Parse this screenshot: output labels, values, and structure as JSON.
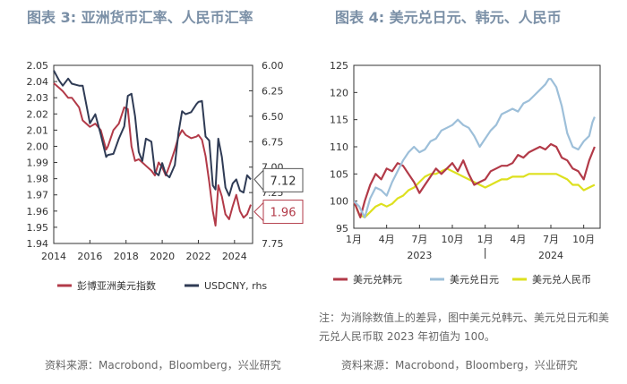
{
  "left_title": "图表 3: 亚洲货币汇率、人民币汇率",
  "right_title": "图表 4: 美元兑日元、韩元、人民币",
  "note": "注：为消除数值上的差异，图中美元兑韩元、美元兑日元和美元兑人民币取 2023 年初值为 100。",
  "left_source": "资料来源：Macrobond，Bloomberg，兴业研究",
  "right_source": "资料来源：Macrobond，Bloomberg，兴业研究",
  "colors": {
    "red": "#b23a48",
    "navy": "#2f3b55",
    "lightblue": "#9dbfd9",
    "yellow": "#dde01e",
    "title": "#7a8fa6"
  },
  "chart_data": [
    {
      "type": "line",
      "title": "图表 3: 亚洲货币汇率、人民币汇率",
      "x_range": [
        2014,
        2025
      ],
      "x_ticks": [
        "2014",
        "2016",
        "2018",
        "2020",
        "2022",
        "2024"
      ],
      "y_left_range": [
        1.94,
        2.05
      ],
      "y_left_ticks": [
        "2.05",
        "2.04",
        "2.03",
        "2.02",
        "2.01",
        "2.00",
        "1.99",
        "1.98",
        "1.97",
        "1.96",
        "1.95",
        "1.94"
      ],
      "y_right_range": [
        6.0,
        7.75
      ],
      "y_right_inverted": true,
      "y_right_ticks": [
        "6.00",
        "6.25",
        "6.50",
        "6.75",
        "7.00",
        "7.25",
        "7.50",
        "7.75"
      ],
      "series": [
        {
          "name": "彭博亚洲美元指数",
          "axis": "left",
          "x": [
            2014.0,
            2014.3,
            2014.5,
            2014.8,
            2015.0,
            2015.4,
            2015.6,
            2016.0,
            2016.3,
            2016.6,
            2016.9,
            2017.0,
            2017.3,
            2017.6,
            2017.9,
            2018.1,
            2018.3,
            2018.5,
            2018.7,
            2018.9,
            2019.1,
            2019.4,
            2019.6,
            2019.8,
            2020.0,
            2020.2,
            2020.4,
            2020.7,
            2020.9,
            2021.1,
            2021.3,
            2021.6,
            2021.9,
            2022.0,
            2022.2,
            2022.4,
            2022.6,
            2022.8,
            2022.95,
            2023.1,
            2023.3,
            2023.5,
            2023.7,
            2023.9,
            2024.1,
            2024.3,
            2024.5,
            2024.7,
            2024.9
          ],
          "values": [
            2.039,
            2.036,
            2.034,
            2.03,
            2.03,
            2.024,
            2.016,
            2.012,
            2.014,
            2.01,
            1.998,
            2.0,
            2.01,
            2.014,
            2.024,
            2.023,
            2.0,
            1.991,
            1.992,
            1.99,
            1.988,
            1.985,
            1.982,
            1.99,
            1.987,
            1.982,
            1.988,
            1.998,
            2.006,
            2.01,
            2.007,
            2.005,
            2.006,
            2.007,
            2.004,
            1.994,
            1.978,
            1.96,
            1.951,
            1.976,
            1.969,
            1.958,
            1.955,
            1.963,
            1.97,
            1.96,
            1.956,
            1.958,
            1.964
          ]
        },
        {
          "name": "USDCNY, rhs",
          "axis": "right",
          "x": [
            2014.0,
            2014.3,
            2014.5,
            2014.8,
            2015.0,
            2015.4,
            2015.6,
            2016.0,
            2016.3,
            2016.6,
            2016.9,
            2017.0,
            2017.3,
            2017.6,
            2017.9,
            2018.1,
            2018.3,
            2018.5,
            2018.7,
            2018.9,
            2019.1,
            2019.4,
            2019.6,
            2019.8,
            2020.0,
            2020.2,
            2020.4,
            2020.7,
            2020.9,
            2021.1,
            2021.3,
            2021.6,
            2021.9,
            2022.0,
            2022.2,
            2022.4,
            2022.6,
            2022.8,
            2022.95,
            2023.1,
            2023.3,
            2023.5,
            2023.7,
            2023.9,
            2024.1,
            2024.3,
            2024.5,
            2024.7,
            2024.9
          ],
          "values": [
            6.05,
            6.15,
            6.2,
            6.13,
            6.18,
            6.2,
            6.2,
            6.57,
            6.48,
            6.68,
            6.9,
            6.88,
            6.87,
            6.72,
            6.6,
            6.3,
            6.28,
            6.5,
            6.85,
            6.94,
            6.72,
            6.75,
            7.05,
            7.08,
            6.96,
            7.07,
            7.1,
            6.98,
            6.66,
            6.45,
            6.48,
            6.46,
            6.38,
            6.36,
            6.35,
            6.7,
            6.74,
            7.18,
            7.22,
            6.72,
            6.9,
            7.2,
            7.28,
            7.16,
            7.12,
            7.23,
            7.25,
            7.08,
            7.12
          ]
        }
      ],
      "callouts": [
        "7.12",
        "1.96"
      ],
      "legend": [
        "彭博亚洲美元指数",
        "USDCNY, rhs"
      ]
    },
    {
      "type": "line",
      "title": "图表 4: 美元兑日元、韩元、人民币",
      "x_range": [
        0,
        22.5
      ],
      "x_ticks": [
        "1月",
        "4月",
        "7月",
        "10月",
        "1月",
        "4月",
        "7月",
        "10月"
      ],
      "x_year_labels": [
        "2023",
        "2024"
      ],
      "y_range": [
        95,
        125
      ],
      "y_ticks": [
        "125",
        "120",
        "115",
        "110",
        "105",
        "100",
        "95"
      ],
      "series": [
        {
          "name": "美元兑韩元",
          "x": [
            0,
            0.3,
            0.6,
            1.0,
            1.5,
            2.0,
            2.5,
            3.0,
            3.5,
            4.0,
            4.5,
            5.0,
            5.5,
            6.0,
            6.5,
            7.0,
            7.5,
            8.0,
            8.5,
            9.0,
            9.5,
            10.0,
            10.5,
            11.0,
            11.5,
            12.0,
            12.5,
            13.0,
            13.5,
            14.0,
            14.5,
            15.0,
            15.5,
            16.0,
            16.5,
            17.0,
            17.5,
            18.0,
            18.5,
            19.0,
            19.5,
            20.0,
            20.5,
            21.0,
            21.5,
            22.0
          ],
          "values": [
            100,
            98.5,
            97,
            100,
            103,
            105,
            104,
            106,
            105.5,
            107,
            106.5,
            105,
            103.5,
            101.5,
            103,
            104.5,
            106,
            105,
            106,
            107,
            105.5,
            107.5,
            105,
            103,
            103.5,
            104,
            105.5,
            106,
            106.5,
            106.5,
            107,
            108.5,
            108,
            109,
            109.5,
            110,
            109.5,
            110.5,
            110,
            108,
            107.5,
            106,
            105.5,
            104,
            107.5,
            110
          ]
        },
        {
          "name": "美元兑日元",
          "x": [
            0,
            0.5,
            1.0,
            1.5,
            2.0,
            2.5,
            3.0,
            3.5,
            4.0,
            4.5,
            5.0,
            5.5,
            6.0,
            6.5,
            7.0,
            7.5,
            8.0,
            8.5,
            9.0,
            9.5,
            10.0,
            10.5,
            11.0,
            11.5,
            12.0,
            12.5,
            13.0,
            13.5,
            14.0,
            14.5,
            15.0,
            15.5,
            16.0,
            16.5,
            17.0,
            17.5,
            17.8,
            18.0,
            18.5,
            19.0,
            19.5,
            20.0,
            20.5,
            21.0,
            21.5,
            21.8,
            22.0
          ],
          "values": [
            100,
            99,
            97,
            100.5,
            102.5,
            102,
            101,
            103.5,
            105.5,
            107.5,
            109,
            110,
            109,
            109.5,
            111,
            111.5,
            113,
            113.5,
            114,
            115,
            114,
            113.5,
            112,
            110,
            111.5,
            113,
            114,
            116,
            116.5,
            117,
            116.5,
            118,
            118.5,
            119.5,
            120.5,
            121.5,
            122.5,
            122.5,
            121,
            117.5,
            112.5,
            110,
            109.5,
            111,
            112,
            114.5,
            115.5
          ]
        },
        {
          "name": "美元兑人民币",
          "x": [
            0,
            0.5,
            1.0,
            1.5,
            2.0,
            2.5,
            3.0,
            3.5,
            4.0,
            4.5,
            5.0,
            5.5,
            6.0,
            6.5,
            7.0,
            7.5,
            8.0,
            8.5,
            9.0,
            9.5,
            10.0,
            10.5,
            11.0,
            11.5,
            12.0,
            12.5,
            13.0,
            13.5,
            14.0,
            14.5,
            15.0,
            15.5,
            16.0,
            16.5,
            17.0,
            17.5,
            18.0,
            18.5,
            19.0,
            19.5,
            20.0,
            20.5,
            21.0,
            21.5,
            22.0
          ],
          "values": [
            100,
            97.5,
            97,
            98,
            99,
            99.5,
            99,
            99.5,
            100.5,
            101,
            102,
            102.5,
            103.5,
            104.5,
            105,
            105,
            105.5,
            106,
            105.5,
            105,
            104.5,
            104,
            103.5,
            103,
            102.5,
            103,
            103.5,
            104,
            104,
            104.5,
            104.5,
            104.5,
            105,
            105,
            105,
            105,
            105,
            105,
            104.5,
            104,
            103,
            103,
            102,
            102.5,
            103
          ]
        }
      ],
      "legend": [
        "美元兑韩元",
        "美元兑日元",
        "美元兑人民币"
      ]
    }
  ]
}
